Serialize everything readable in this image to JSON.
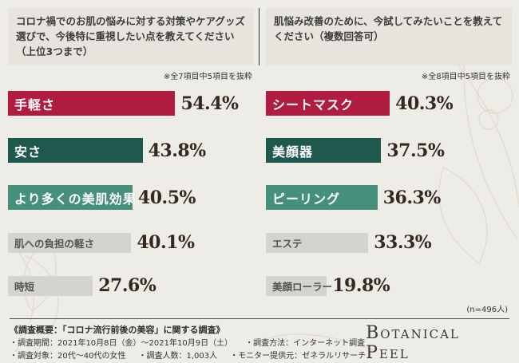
{
  "survey_note": "(n=496人)",
  "logo_text": "Botanical Peel",
  "colors": {
    "background": "#eeece6",
    "question_box": "#e7e4de",
    "rank1": "#b01d41",
    "rank2": "#1f584c",
    "rank3": "#44907c",
    "gray_bar": "#d5d3cf",
    "value_text": "#362721"
  },
  "chart_data": [
    {
      "type": "bar",
      "orientation": "horizontal",
      "title": "コロナ禍でのお肌の悩みに対する対策やケアグッズ選びで、今後特に重視したい点を教えてください（上位3つまで）",
      "note": "※全7項目中5項目を抜粋",
      "xlim": [
        0,
        60
      ],
      "categories": [
        "手軽さ",
        "安さ",
        "より多くの美肌効果",
        "肌への負担の軽さ",
        "時短"
      ],
      "values": [
        54.4,
        43.8,
        40.5,
        40.1,
        27.6
      ],
      "bars": [
        {
          "label": "手軽さ",
          "value": 54.4,
          "display": "54.4%",
          "color": "#b01d41",
          "label_color": "#ffffff",
          "highlight": true
        },
        {
          "label": "安さ",
          "value": 43.8,
          "display": "43.8%",
          "color": "#1f584c",
          "label_color": "#ffffff",
          "highlight": true
        },
        {
          "label": "より多くの美肌効果",
          "value": 40.5,
          "display": "40.5%",
          "color": "#44907c",
          "label_color": "#ffffff",
          "highlight": true
        },
        {
          "label": "肌への負担の軽さ",
          "value": 40.1,
          "display": "40.1%",
          "color": "#d5d3cf",
          "label_color": "#565452",
          "highlight": false
        },
        {
          "label": "時短",
          "value": 27.6,
          "display": "27.6%",
          "color": "#d5d3cf",
          "label_color": "#565452",
          "highlight": false
        }
      ]
    },
    {
      "type": "bar",
      "orientation": "horizontal",
      "title": "肌悩み改善のために、今試してみたいことを教えてください（複数回答可）",
      "note": "※全8項目中5項目を抜粋",
      "xlim": [
        0,
        60
      ],
      "categories": [
        "シートマスク",
        "美顔器",
        "ピーリング",
        "エステ",
        "美顔ローラー"
      ],
      "values": [
        40.3,
        37.5,
        36.3,
        33.3,
        19.8
      ],
      "bars": [
        {
          "label": "シートマスク",
          "value": 40.3,
          "display": "40.3%",
          "color": "#b01d41",
          "label_color": "#ffffff",
          "highlight": true
        },
        {
          "label": "美顔器",
          "value": 37.5,
          "display": "37.5%",
          "color": "#1f584c",
          "label_color": "#ffffff",
          "highlight": true
        },
        {
          "label": "ピーリング",
          "value": 36.3,
          "display": "36.3%",
          "color": "#44907c",
          "label_color": "#ffffff",
          "highlight": true
        },
        {
          "label": "エステ",
          "value": 33.3,
          "display": "33.3%",
          "color": "#d5d3cf",
          "label_color": "#565452",
          "highlight": false
        },
        {
          "label": "美顔ローラー",
          "value": 19.8,
          "display": "19.8%",
          "color": "#d5d3cf",
          "label_color": "#565452",
          "highlight": false
        }
      ]
    }
  ],
  "footer": {
    "heading": "《調査概要：「コロナ流行前後の美容」に関する調査》",
    "rows": [
      [
        "・調査期間：2021年10月8日（金）〜2021年10月9日（土）",
        "・調査方法：インターネット調査"
      ],
      [
        "・調査対象：20代〜40代の女性",
        "・調査人数：1,003人",
        "・モニター提供元：ゼネラルリサーチ"
      ]
    ]
  }
}
